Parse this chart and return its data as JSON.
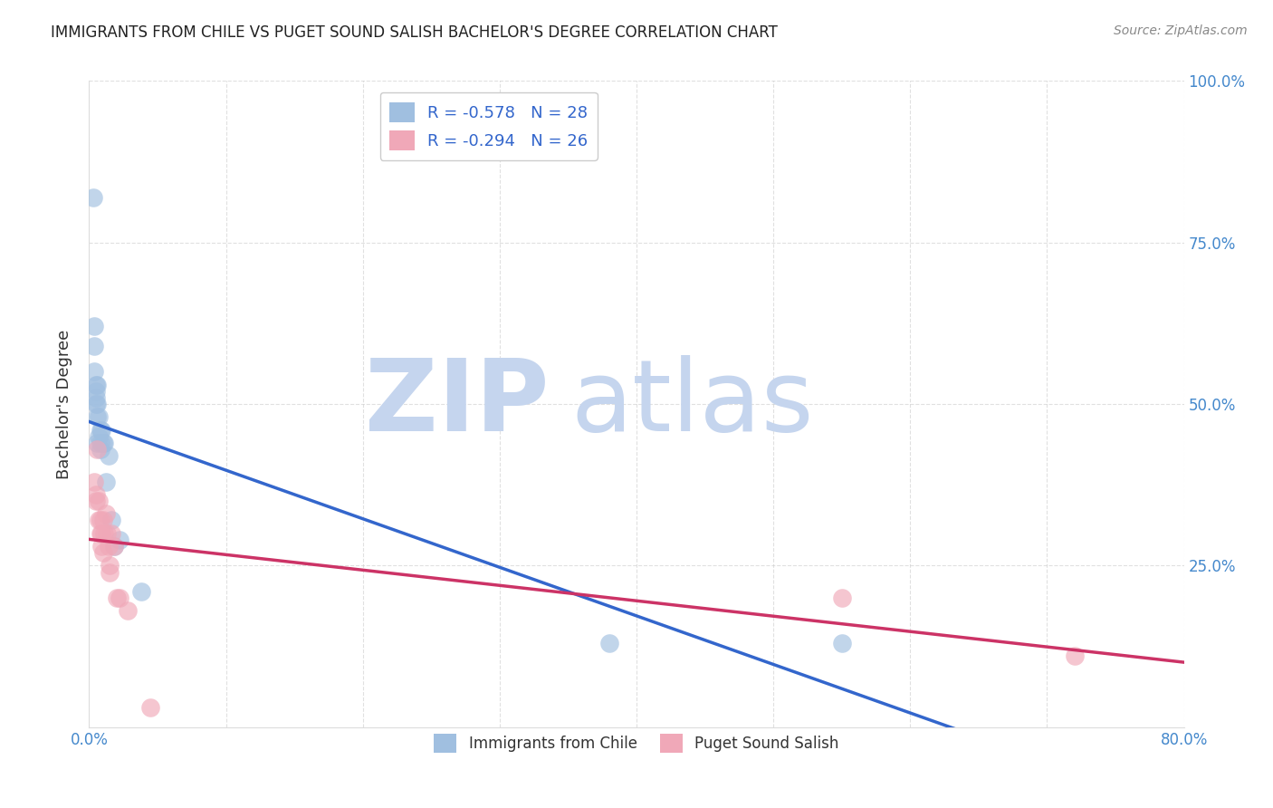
{
  "title": "IMMIGRANTS FROM CHILE VS PUGET SOUND SALISH BACHELOR'S DEGREE CORRELATION CHART",
  "source": "Source: ZipAtlas.com",
  "ylabel": "Bachelor's Degree",
  "xlabel": "",
  "xlim": [
    0.0,
    0.8
  ],
  "ylim": [
    0.0,
    1.0
  ],
  "blue_color": "#a0bfe0",
  "pink_color": "#f0a8b8",
  "blue_line_color": "#3366cc",
  "pink_line_color": "#cc3366",
  "legend_r1": "R = -0.578",
  "legend_n1": "N = 28",
  "legend_r2": "R = -0.294",
  "legend_n2": "N = 26",
  "legend_label1": "Immigrants from Chile",
  "legend_label2": "Puget Sound Salish",
  "watermark_zip": "ZIP",
  "watermark_atlas": "atlas",
  "watermark_color": "#c8d8f0",
  "watermark_atlas_color": "#b0c8e8",
  "background": "#ffffff",
  "grid_color": "#cccccc",
  "blue_x": [
    0.003,
    0.004,
    0.004,
    0.004,
    0.005,
    0.005,
    0.005,
    0.005,
    0.006,
    0.006,
    0.006,
    0.006,
    0.007,
    0.007,
    0.008,
    0.008,
    0.008,
    0.009,
    0.01,
    0.011,
    0.012,
    0.014,
    0.016,
    0.018,
    0.022,
    0.038,
    0.38,
    0.55
  ],
  "blue_y": [
    0.82,
    0.62,
    0.59,
    0.55,
    0.53,
    0.52,
    0.51,
    0.5,
    0.53,
    0.5,
    0.48,
    0.44,
    0.48,
    0.45,
    0.46,
    0.44,
    0.43,
    0.46,
    0.44,
    0.44,
    0.38,
    0.42,
    0.32,
    0.28,
    0.29,
    0.21,
    0.13,
    0.13
  ],
  "pink_x": [
    0.004,
    0.005,
    0.005,
    0.006,
    0.007,
    0.007,
    0.008,
    0.008,
    0.009,
    0.009,
    0.01,
    0.01,
    0.011,
    0.012,
    0.013,
    0.014,
    0.015,
    0.015,
    0.016,
    0.018,
    0.02,
    0.022,
    0.028,
    0.045,
    0.55,
    0.72
  ],
  "pink_y": [
    0.38,
    0.36,
    0.35,
    0.43,
    0.35,
    0.32,
    0.32,
    0.3,
    0.3,
    0.28,
    0.32,
    0.27,
    0.3,
    0.33,
    0.3,
    0.28,
    0.25,
    0.24,
    0.3,
    0.28,
    0.2,
    0.2,
    0.18,
    0.03,
    0.2,
    0.11
  ]
}
